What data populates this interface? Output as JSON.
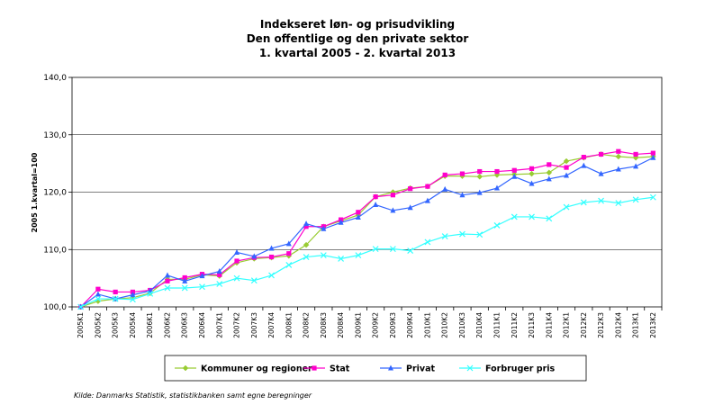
{
  "chart_data": {
    "type": "line",
    "title_lines": [
      "Indekseret løn- og prisudvikling",
      "Den offentlige og  den private sektor",
      "1. kvartal 2005 - 2. kvartal 2013"
    ],
    "ylabel": "2005 1.kvartal=100",
    "xlabel": "",
    "ylim": [
      100,
      140
    ],
    "yticks": [
      "100,0",
      "110,0",
      "120,0",
      "130,0",
      "140,0"
    ],
    "grid": true,
    "legend_position": "bottom",
    "source": "Kilde: Danmarks Statistik, statistikbanken   samt egne beregninger",
    "categories": [
      "2005K1",
      "2005K2",
      "2005K3",
      "2005K4",
      "2006K1",
      "2006K2",
      "2006K3",
      "2006K4",
      "2007K1",
      "2007K2",
      "2007K3",
      "2007K4",
      "2008K1",
      "2008K2",
      "2008K3",
      "2008K4",
      "2009K1",
      "2009K2",
      "2009K3",
      "2009K4",
      "2010K1",
      "2010K2",
      "2010K3",
      "2010K4",
      "2011K1",
      "2011K2",
      "2011K3",
      "2011K4",
      "2012K1",
      "2012K2",
      "2012K3",
      "2012K4",
      "2013K1",
      "2013K2"
    ],
    "series": [
      {
        "name": "Kommuner og regioner",
        "color": "#99cc33",
        "marker": "diamond",
        "values": [
          100.0,
          101.0,
          101.4,
          101.6,
          102.4,
          104.8,
          104.8,
          105.6,
          105.4,
          107.7,
          108.4,
          108.6,
          108.9,
          110.8,
          114.0,
          115.0,
          116.0,
          119.2,
          120.0,
          120.7,
          121.0,
          122.8,
          122.8,
          122.7,
          123.0,
          123.1,
          123.2,
          123.4,
          125.4,
          126.0,
          126.6,
          126.2,
          126.0,
          126.2
        ]
      },
      {
        "name": "Stat",
        "color": "#ff00cc",
        "marker": "square",
        "values": [
          100.0,
          103.1,
          102.6,
          102.6,
          102.9,
          104.5,
          105.1,
          105.7,
          105.6,
          108.0,
          108.6,
          108.7,
          109.3,
          114.0,
          114.0,
          115.2,
          116.5,
          119.2,
          119.5,
          120.6,
          121.0,
          123.0,
          123.2,
          123.6,
          123.6,
          123.8,
          124.1,
          124.8,
          124.3,
          126.1,
          126.6,
          127.1,
          126.6,
          126.8
        ]
      },
      {
        "name": "Privat",
        "color": "#3366ff",
        "marker": "triangle",
        "values": [
          100.0,
          102.2,
          101.4,
          102.1,
          102.8,
          105.5,
          104.5,
          105.4,
          106.2,
          109.5,
          108.8,
          110.2,
          111.0,
          114.5,
          113.6,
          114.7,
          115.6,
          117.8,
          116.8,
          117.3,
          118.5,
          120.5,
          119.5,
          119.9,
          120.7,
          122.7,
          121.5,
          122.3,
          122.9,
          124.6,
          123.2,
          124.0,
          124.5,
          126.0
        ]
      },
      {
        "name": "Forbruger pris",
        "color": "#33ffff",
        "marker": "x",
        "values": [
          100.0,
          101.4,
          101.4,
          101.3,
          102.3,
          103.3,
          103.3,
          103.5,
          104.0,
          105.0,
          104.6,
          105.5,
          107.3,
          108.7,
          109.0,
          108.4,
          109.0,
          110.1,
          110.1,
          109.8,
          111.3,
          112.3,
          112.7,
          112.6,
          114.2,
          115.7,
          115.7,
          115.4,
          117.4,
          118.2,
          118.5,
          118.1,
          118.7,
          119.1
        ]
      }
    ]
  }
}
